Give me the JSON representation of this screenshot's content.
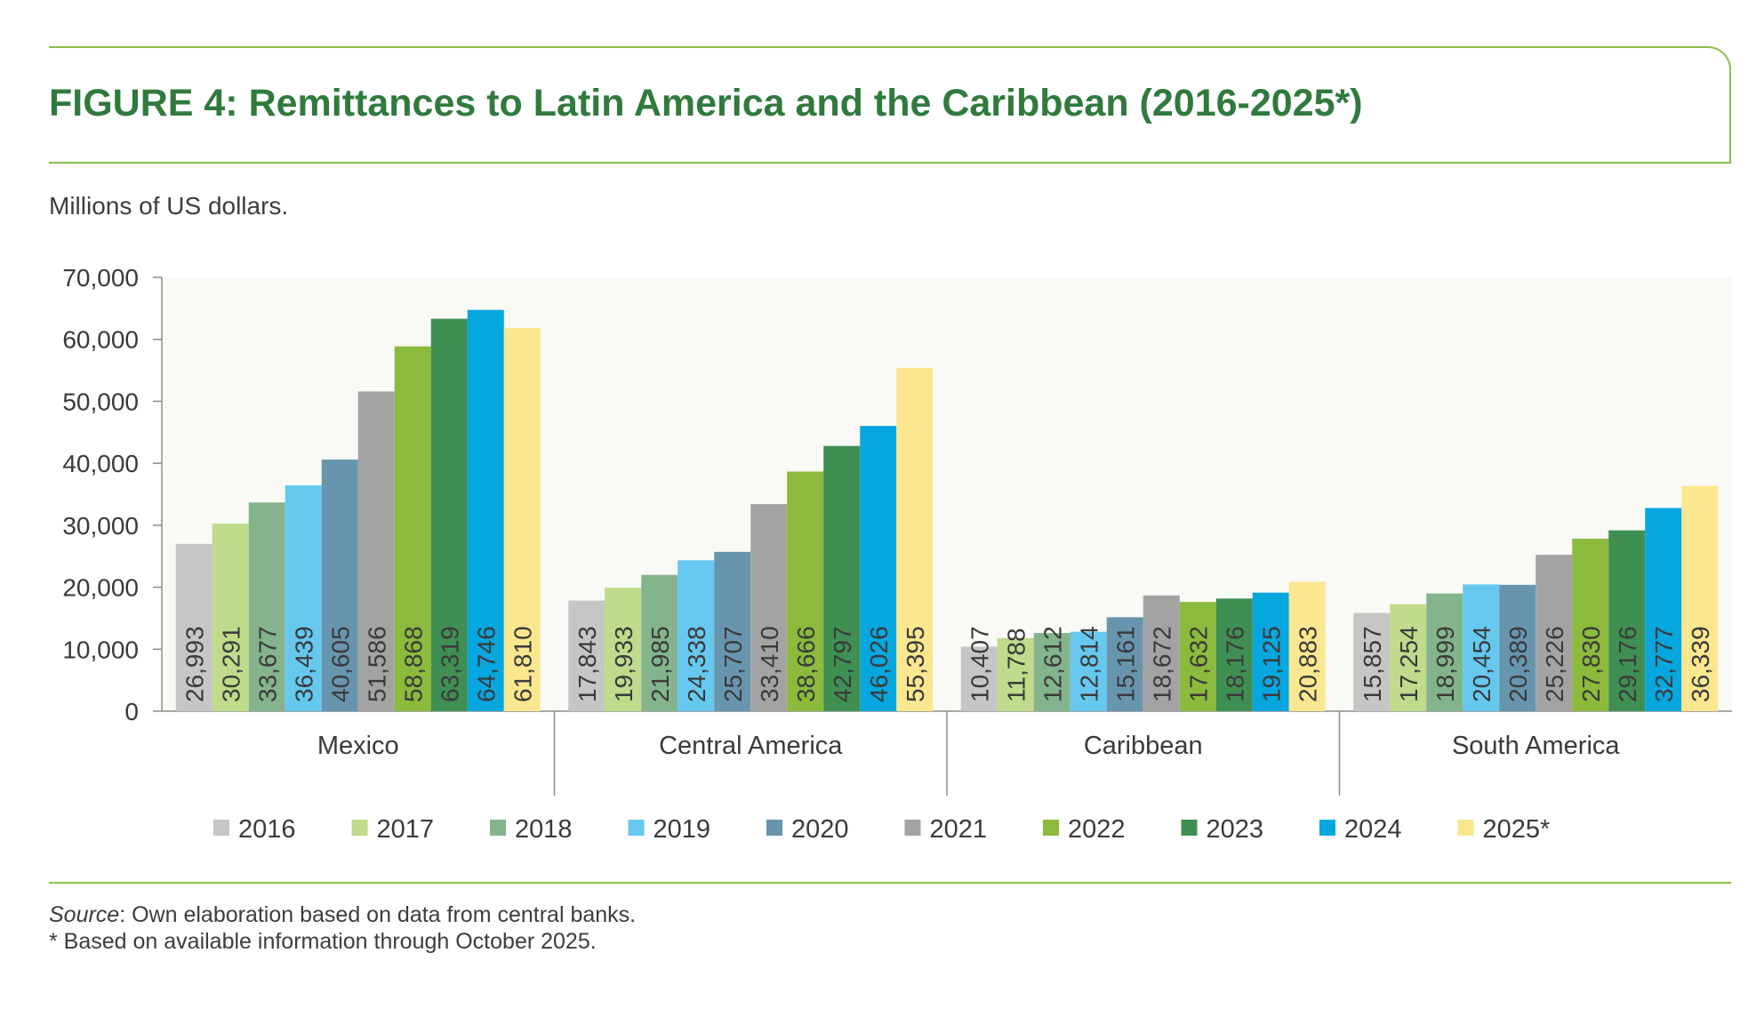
{
  "figure": {
    "title": "FIGURE 4: Remittances to Latin America and the Caribbean (2016-2025*)",
    "unit_label": "Millions of US dollars.",
    "source_label": "Source",
    "source_text": ": Own elaboration based on data from central banks.",
    "footnote": "* Based on available information through October 2025."
  },
  "chart_data": {
    "type": "bar",
    "title": "FIGURE 4: Remittances to Latin America and the Caribbean (2016-2025*)",
    "ylabel": "Millions of US dollars.",
    "xlabel": "",
    "ylim": [
      0,
      70000
    ],
    "yticks": [
      0,
      10000,
      20000,
      30000,
      40000,
      50000,
      60000,
      70000
    ],
    "ytick_labels": [
      "0",
      "10,000",
      "20,000",
      "30,000",
      "40,000",
      "50,000",
      "60,000",
      "70,000"
    ],
    "grid": false,
    "legend_position": "bottom",
    "categories": [
      "Mexico",
      "Central America",
      "Caribbean",
      "South America"
    ],
    "series": [
      {
        "name": "2016",
        "color": "#c6c6c6",
        "label_color": "#3a3a3a",
        "values": [
          26993,
          17843,
          10407,
          15857
        ],
        "labels": [
          "26,993",
          "17,843",
          "10,407",
          "15,857"
        ]
      },
      {
        "name": "2017",
        "color": "#bfdb8b",
        "label_color": "#3a3a3a",
        "values": [
          30291,
          19933,
          11788,
          17254
        ],
        "labels": [
          "30,291",
          "19,933",
          "11,788",
          "17,254"
        ]
      },
      {
        "name": "2018",
        "color": "#84b48c",
        "label_color": "#3a3a3a",
        "values": [
          33677,
          21985,
          12612,
          18999
        ],
        "labels": [
          "33,677",
          "21,985",
          "12,612",
          "18,999"
        ]
      },
      {
        "name": "2019",
        "color": "#66c8ee",
        "label_color": "#3a3a3a",
        "values": [
          36439,
          24338,
          12814,
          20454
        ],
        "labels": [
          "36,439",
          "24,338",
          "12,814",
          "20,454"
        ]
      },
      {
        "name": "2020",
        "color": "#6895ae",
        "label_color": "#3a3a3a",
        "values": [
          40605,
          25707,
          15161,
          20389
        ],
        "labels": [
          "40,605",
          "25,707",
          "15,161",
          "20,389"
        ]
      },
      {
        "name": "2021",
        "color": "#a3a3a3",
        "label_color": "#3a3a3a",
        "values": [
          51586,
          33410,
          18672,
          25226
        ],
        "labels": [
          "51,586",
          "33,410",
          "18,672",
          "25,226"
        ]
      },
      {
        "name": "2022",
        "color": "#8bba3c",
        "label_color": "#3a3a3a",
        "values": [
          58868,
          38666,
          17632,
          27830
        ],
        "labels": [
          "58,868",
          "38,666",
          "17,632",
          "27,830"
        ]
      },
      {
        "name": "2023",
        "color": "#3f8f52",
        "label_color": "#3a3a3a",
        "values": [
          63319,
          42797,
          18176,
          29176
        ],
        "labels": [
          "63,319",
          "42,797",
          "18,176",
          "29,176"
        ]
      },
      {
        "name": "2024",
        "color": "#06a6df",
        "label_color": "#3a3a3a",
        "values": [
          64746,
          46026,
          19125,
          32777
        ],
        "labels": [
          "64,746",
          "46,026",
          "19,125",
          "32,777"
        ]
      },
      {
        "name": "2025*",
        "color": "#fae78f",
        "label_color": "#3a3a3a",
        "values": [
          61810,
          55395,
          20883,
          36339
        ],
        "labels": [
          "61,810",
          "55,395",
          "20,883",
          "36,339"
        ]
      }
    ],
    "plot_background": "#f9f9f5",
    "axis_color": "#8c8c8c"
  }
}
